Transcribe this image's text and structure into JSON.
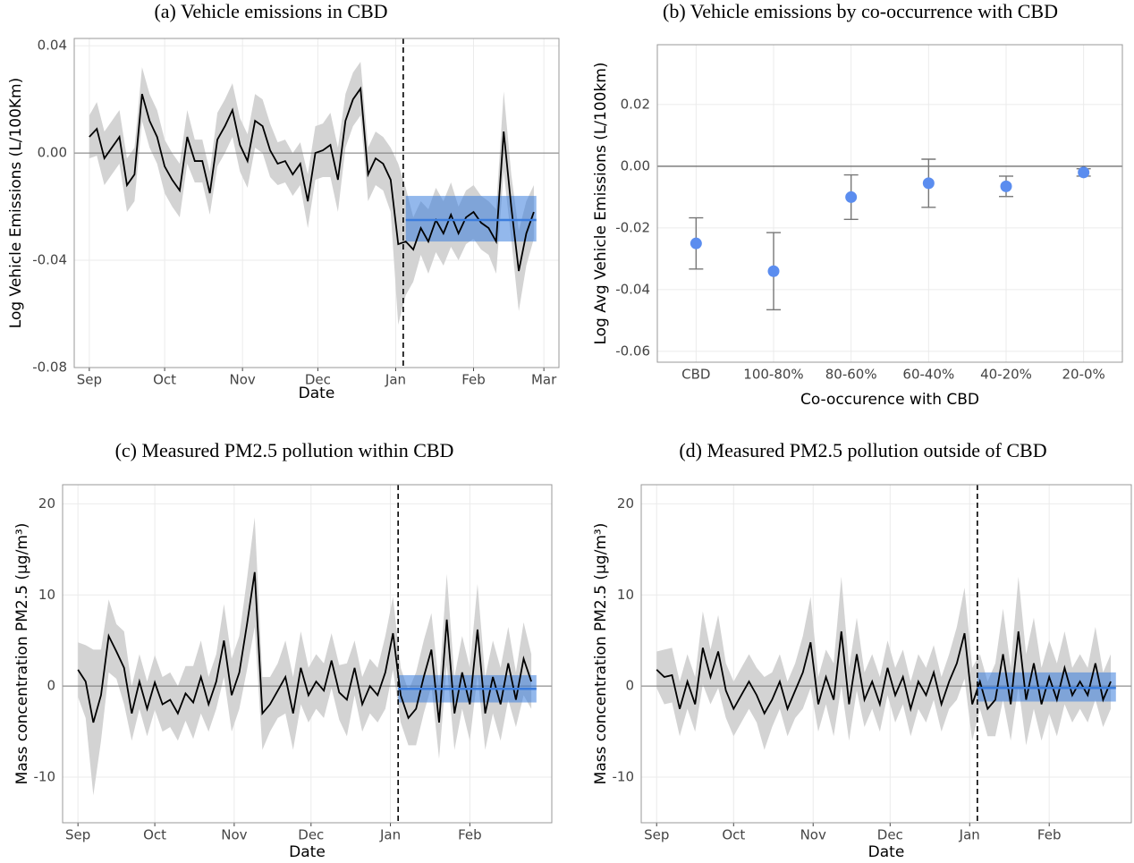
{
  "chart_data": [
    {
      "type": "line",
      "title": "(a) Vehicle emissions in CBD",
      "xlabel": "Date",
      "ylabel": "Log Vehicle Emissions (L/100Km)",
      "x": [
        0,
        3,
        6,
        9,
        12,
        15,
        18,
        21,
        24,
        27,
        30,
        33,
        36,
        39,
        42,
        45,
        48,
        51,
        54,
        57,
        60,
        63,
        66,
        69,
        72,
        75,
        78,
        81,
        84,
        87,
        90,
        93,
        96,
        99,
        102,
        105,
        108,
        111,
        114,
        117,
        120,
        123,
        126,
        129,
        132,
        135,
        138,
        141,
        144,
        147,
        150,
        153,
        156,
        159,
        162,
        165,
        168,
        171,
        174,
        177
      ],
      "values": [
        0.006,
        0.009,
        -0.002,
        0.002,
        0.006,
        -0.012,
        -0.008,
        0.022,
        0.012,
        0.006,
        -0.005,
        -0.01,
        -0.014,
        0.006,
        -0.003,
        -0.003,
        -0.015,
        0.005,
        0.01,
        0.016,
        0.003,
        -0.003,
        0.012,
        0.01,
        0.001,
        -0.004,
        -0.003,
        -0.008,
        -0.004,
        -0.018,
        0,
        0.001,
        0.003,
        -0.01,
        0.012,
        0.02,
        0.024,
        -0.008,
        -0.002,
        -0.004,
        -0.01,
        -0.034,
        -0.033,
        -0.036,
        -0.028,
        -0.033,
        -0.025,
        -0.03,
        -0.023,
        -0.03,
        -0.024,
        -0.022,
        -0.026,
        -0.028,
        -0.033,
        0.008,
        -0.02,
        -0.044,
        -0.03,
        -0.022
      ],
      "band": [
        0.008,
        0.01,
        0.01,
        0.01,
        0.01,
        0.01,
        0.01,
        0.01,
        0.01,
        0.01,
        0.01,
        0.01,
        0.01,
        0.01,
        0.008,
        0.008,
        0.008,
        0.01,
        0.01,
        0.01,
        0.01,
        0.01,
        0.01,
        0.01,
        0.01,
        0.008,
        0.008,
        0.008,
        0.008,
        0.01,
        0.01,
        0.01,
        0.012,
        0.012,
        0.01,
        0.01,
        0.01,
        0.01,
        0.01,
        0.01,
        0.012,
        0.03,
        0.02,
        0.012,
        0.01,
        0.012,
        0.012,
        0.012,
        0.012,
        0.01,
        0.01,
        0.01,
        0.01,
        0.01,
        0.012,
        0.015,
        0.012,
        0.015,
        0.012,
        0.01
      ],
      "xlim": [
        -6,
        187
      ],
      "xticks": [
        {
          "value": 0,
          "label": "Sep"
        },
        {
          "value": 30,
          "label": "Oct"
        },
        {
          "value": 61,
          "label": "Nov"
        },
        {
          "value": 91,
          "label": "Dec"
        },
        {
          "value": 122,
          "label": "Jan"
        },
        {
          "value": 153,
          "label": "Feb"
        },
        {
          "value": 181,
          "label": "Mar"
        }
      ],
      "ylim": [
        -0.08,
        0.0427
      ],
      "yticks": [
        -0.08,
        -0.04,
        {
          "value": 0,
          "label": "0.00"
        },
        0.04
      ],
      "hline": 0,
      "cutoff": 125,
      "effect": {
        "start": 126,
        "end": 178,
        "value": -0.025,
        "lower": -0.033,
        "upper": -0.016
      },
      "color": "#000000",
      "band_color": "#d3d3d3",
      "effect_color": "#3b7ddd",
      "grid": true
    },
    {
      "type": "dot",
      "title": "(b) Vehicle emissions by co-occurrence with CBD",
      "xlabel": "Co-occurence with CBD",
      "ylabel": "Log Avg Vehicle Emissions (L/100km)",
      "categories": [
        "CBD",
        "100-80%",
        "80-60%",
        "60-40%",
        "40-20%",
        "20-0%"
      ],
      "values": [
        -0.025,
        -0.034,
        -0.01,
        -0.0055,
        -0.0065,
        -0.002
      ],
      "errors": [
        0.0083,
        0.0125,
        0.0072,
        0.0078,
        0.0033,
        0.0012
      ],
      "ylim": [
        -0.0635,
        0.0394
      ],
      "yticks": [
        -0.06,
        -0.04,
        -0.02,
        {
          "value": 0,
          "label": "0.00"
        },
        0.02
      ],
      "hline": 0,
      "color": "#5b8def",
      "error_color": "#777777",
      "grid": true
    },
    {
      "type": "line",
      "title": "(c) Measured PM2.5 pollution within CBD",
      "xlabel": "Date",
      "ylabel": "Mass concentration PM2.5 (µg/m³)",
      "x": [
        0,
        3,
        6,
        9,
        12,
        15,
        18,
        21,
        24,
        27,
        30,
        33,
        36,
        39,
        42,
        45,
        48,
        51,
        54,
        57,
        60,
        63,
        66,
        69,
        72,
        75,
        78,
        81,
        84,
        87,
        90,
        93,
        96,
        99,
        102,
        105,
        108,
        111,
        114,
        117,
        120,
        123,
        126,
        129,
        132,
        135,
        138,
        141,
        144,
        147,
        150,
        153,
        156,
        159,
        162,
        165,
        168,
        171,
        174,
        177
      ],
      "values": [
        1.8,
        0.5,
        -4.0,
        -1.0,
        5.5,
        3.8,
        2.0,
        -3.0,
        0.5,
        -2.5,
        0.4,
        -2.0,
        -1.5,
        -3.0,
        -0.8,
        -1.8,
        1.0,
        -2.0,
        0.5,
        5.0,
        -1.0,
        1.5,
        6.8,
        12.5,
        -3.0,
        -2.0,
        -0.5,
        1.0,
        -3.0,
        2.0,
        -1.0,
        0.5,
        -0.5,
        2.8,
        -0.7,
        -1.5,
        2.0,
        -2.0,
        0,
        -1.0,
        1.5,
        5.8,
        -1.0,
        -3.5,
        -2.5,
        1.0,
        4.0,
        -4.0,
        7.3,
        -3.0,
        1.5,
        -2.0,
        6.2,
        -3.0,
        1.0,
        -2.0,
        2.5,
        -1.5,
        3.0,
        0.5
      ],
      "band": [
        3,
        4,
        8,
        5,
        4,
        3,
        4,
        3,
        3,
        3,
        3,
        3,
        3,
        3,
        3,
        4,
        4,
        3,
        3,
        4,
        4,
        4,
        5,
        6,
        4,
        3,
        3,
        4,
        4,
        4,
        3,
        3,
        3,
        3,
        3,
        4,
        3,
        3,
        3,
        3,
        4,
        4,
        3,
        3,
        4,
        4,
        4,
        4,
        5,
        4,
        4,
        4,
        5,
        4,
        4,
        4,
        4,
        3,
        4,
        3
      ],
      "xlim": [
        -6,
        185
      ],
      "xticks": [
        {
          "value": 0,
          "label": "Sep"
        },
        {
          "value": 30,
          "label": "Oct"
        },
        {
          "value": 61,
          "label": "Nov"
        },
        {
          "value": 91,
          "label": "Dec"
        },
        {
          "value": 122,
          "label": "Jan"
        },
        {
          "value": 153,
          "label": "Feb"
        }
      ],
      "ylim": [
        -15,
        22.1
      ],
      "yticks": [
        -10,
        0,
        10,
        20
      ],
      "hline": 0,
      "cutoff": 125,
      "effect": {
        "start": 125,
        "end": 179,
        "value": -0.3,
        "lower": -1.8,
        "upper": 1.2
      },
      "color": "#000000",
      "band_color": "#d3d3d3",
      "effect_color": "#3b7ddd",
      "grid": true
    },
    {
      "type": "line",
      "title": "(d) Measured PM2.5 pollution outside of CBD",
      "xlabel": "Date",
      "ylabel": "Mass concentration PM2.5 (µg/m³)",
      "x": [
        0,
        3,
        6,
        9,
        12,
        15,
        18,
        21,
        24,
        27,
        30,
        33,
        36,
        39,
        42,
        45,
        48,
        51,
        54,
        57,
        60,
        63,
        66,
        69,
        72,
        75,
        78,
        81,
        84,
        87,
        90,
        93,
        96,
        99,
        102,
        105,
        108,
        111,
        114,
        117,
        120,
        123,
        126,
        129,
        132,
        135,
        138,
        141,
        144,
        147,
        150,
        153,
        156,
        159,
        162,
        165,
        168,
        171,
        174,
        177
      ],
      "values": [
        1.8,
        1.0,
        1.2,
        -2.5,
        0.5,
        -2.0,
        4.2,
        1.0,
        3.8,
        -0.5,
        -2.5,
        -1.0,
        0.5,
        -1.0,
        -3.0,
        -1.5,
        0.5,
        -2.5,
        -0.5,
        1.5,
        4.8,
        -2.0,
        1.0,
        -1.5,
        6.0,
        -2.0,
        3.5,
        -1.5,
        0.5,
        -2.0,
        2.0,
        -1.0,
        1.0,
        -2.5,
        0.5,
        -1.0,
        1.5,
        -2.0,
        0.5,
        2.5,
        5.8,
        -2.0,
        0.5,
        -2.5,
        -1.5,
        3.5,
        -2.0,
        6.0,
        -1.5,
        2.5,
        -2.0,
        1.0,
        -1.5,
        2.0,
        -1.0,
        0.5,
        -1.0,
        2.5,
        -1.5,
        0.5
      ],
      "band": [
        2,
        3,
        3,
        3,
        3,
        3,
        4,
        3,
        4,
        3,
        3,
        3,
        3,
        3,
        4,
        3,
        3,
        3,
        3,
        4,
        5,
        3,
        3,
        4,
        6,
        4,
        4,
        3,
        3,
        3,
        3,
        3,
        3,
        3,
        3,
        3,
        3,
        3,
        3,
        4,
        5,
        4,
        3,
        3,
        4,
        5,
        4,
        6,
        5,
        5,
        4,
        4,
        4,
        4,
        3,
        3,
        3,
        4,
        3,
        3
      ],
      "xlim": [
        -6,
        185
      ],
      "xticks": [
        {
          "value": 0,
          "label": "Sep"
        },
        {
          "value": 30,
          "label": "Oct"
        },
        {
          "value": 61,
          "label": "Nov"
        },
        {
          "value": 91,
          "label": "Dec"
        },
        {
          "value": 122,
          "label": "Jan"
        },
        {
          "value": 153,
          "label": "Feb"
        }
      ],
      "ylim": [
        -15,
        22.1
      ],
      "yticks": [
        -10,
        0,
        10,
        20
      ],
      "hline": 0,
      "cutoff": 125,
      "effect": {
        "start": 125,
        "end": 179,
        "value": -0.2,
        "lower": -1.7,
        "upper": 1.5
      },
      "color": "#000000",
      "band_color": "#d3d3d3",
      "effect_color": "#3b7ddd",
      "grid": true
    }
  ]
}
